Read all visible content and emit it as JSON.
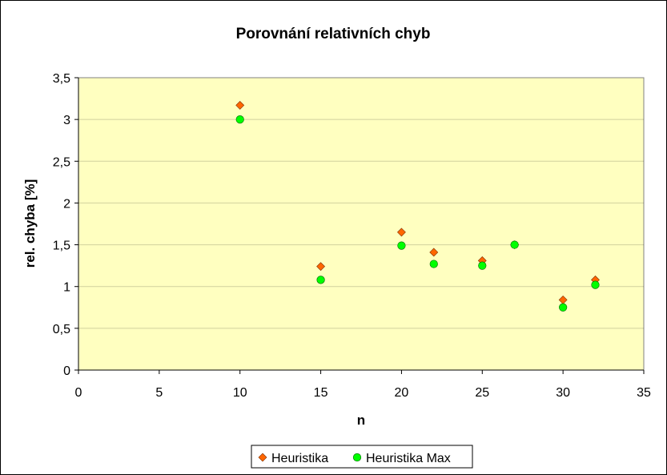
{
  "chart_data": {
    "type": "scatter",
    "title": "Porovnání relativních chyb",
    "xlabel": "n",
    "ylabel": "rel. chyba [%]",
    "xlim": [
      0,
      35
    ],
    "ylim": [
      0,
      3.5
    ],
    "xticks": [
      0,
      5,
      10,
      15,
      20,
      25,
      30,
      35
    ],
    "xtick_labels": [
      "0",
      "5",
      "10",
      "15",
      "20",
      "25",
      "30",
      "35"
    ],
    "yticks": [
      0,
      0.5,
      1,
      1.5,
      2,
      2.5,
      3,
      3.5
    ],
    "ytick_labels": [
      "0",
      "0,5",
      "1",
      "1,5",
      "2",
      "2,5",
      "3",
      "3,5"
    ],
    "grid": "horizontal",
    "plot_background": "#ffffc0",
    "legend_position": "bottom",
    "series": [
      {
        "name": "Heuristika",
        "marker": "diamond",
        "color": "#ff6600",
        "points": [
          {
            "x": 10,
            "y": 3.17
          },
          {
            "x": 15,
            "y": 1.24
          },
          {
            "x": 20,
            "y": 1.65
          },
          {
            "x": 22,
            "y": 1.41
          },
          {
            "x": 25,
            "y": 1.31
          },
          {
            "x": 27,
            "y": 1.5
          },
          {
            "x": 30,
            "y": 0.84
          },
          {
            "x": 32,
            "y": 1.08
          }
        ]
      },
      {
        "name": "Heuristika Max",
        "marker": "circle",
        "color": "#00ff00",
        "points": [
          {
            "x": 10,
            "y": 3.0
          },
          {
            "x": 15,
            "y": 1.08
          },
          {
            "x": 20,
            "y": 1.49
          },
          {
            "x": 22,
            "y": 1.27
          },
          {
            "x": 25,
            "y": 1.25
          },
          {
            "x": 27,
            "y": 1.5
          },
          {
            "x": 30,
            "y": 0.75
          },
          {
            "x": 32,
            "y": 1.02
          }
        ]
      }
    ]
  }
}
